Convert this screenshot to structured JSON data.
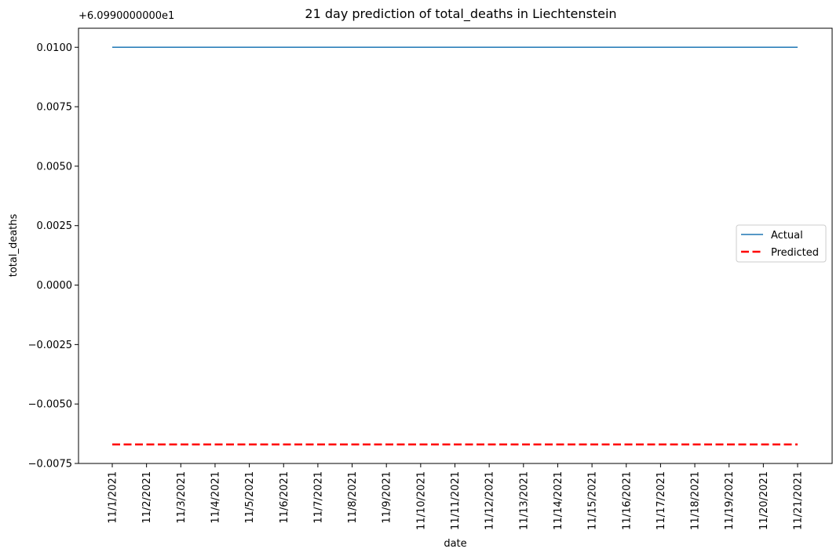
{
  "chart_data": {
    "type": "line",
    "title": "21 day prediction of total_deaths in Liechtenstein",
    "xlabel": "date",
    "ylabel": "total_deaths",
    "y_offset_text": "+6.0990000000e1",
    "categories": [
      "11/1/2021",
      "11/2/2021",
      "11/3/2021",
      "11/4/2021",
      "11/5/2021",
      "11/6/2021",
      "11/7/2021",
      "11/8/2021",
      "11/9/2021",
      "11/10/2021",
      "11/11/2021",
      "11/12/2021",
      "11/13/2021",
      "11/14/2021",
      "11/15/2021",
      "11/16/2021",
      "11/17/2021",
      "11/18/2021",
      "11/19/2021",
      "11/20/2021",
      "11/21/2021"
    ],
    "ylim": [
      -0.0075,
      0.0108
    ],
    "yticks": [
      -0.0075,
      -0.005,
      -0.0025,
      0.0,
      0.0025,
      0.005,
      0.0075,
      0.01
    ],
    "ytick_labels": [
      "−0.0075",
      "−0.0050",
      "−0.0025",
      "0.0000",
      "0.0025",
      "0.0050",
      "0.0075",
      "0.0100"
    ],
    "series": [
      {
        "name": "Actual",
        "color": "#1f77b4",
        "style": "solid",
        "values": [
          0.01,
          0.01,
          0.01,
          0.01,
          0.01,
          0.01,
          0.01,
          0.01,
          0.01,
          0.01,
          0.01,
          0.01,
          0.01,
          0.01,
          0.01,
          0.01,
          0.01,
          0.01,
          0.01,
          0.01,
          0.01
        ]
      },
      {
        "name": "Predicted",
        "color": "#ff0000",
        "style": "dashed",
        "values": [
          -0.0067,
          -0.0067,
          -0.0067,
          -0.0067,
          -0.0067,
          -0.0067,
          -0.0067,
          -0.0067,
          -0.0067,
          -0.0067,
          -0.0067,
          -0.0067,
          -0.0067,
          -0.0067,
          -0.0067,
          -0.0067,
          -0.0067,
          -0.0067,
          -0.0067,
          -0.0067,
          -0.0067
        ]
      }
    ],
    "legend_position": "center-right",
    "grid": false
  }
}
